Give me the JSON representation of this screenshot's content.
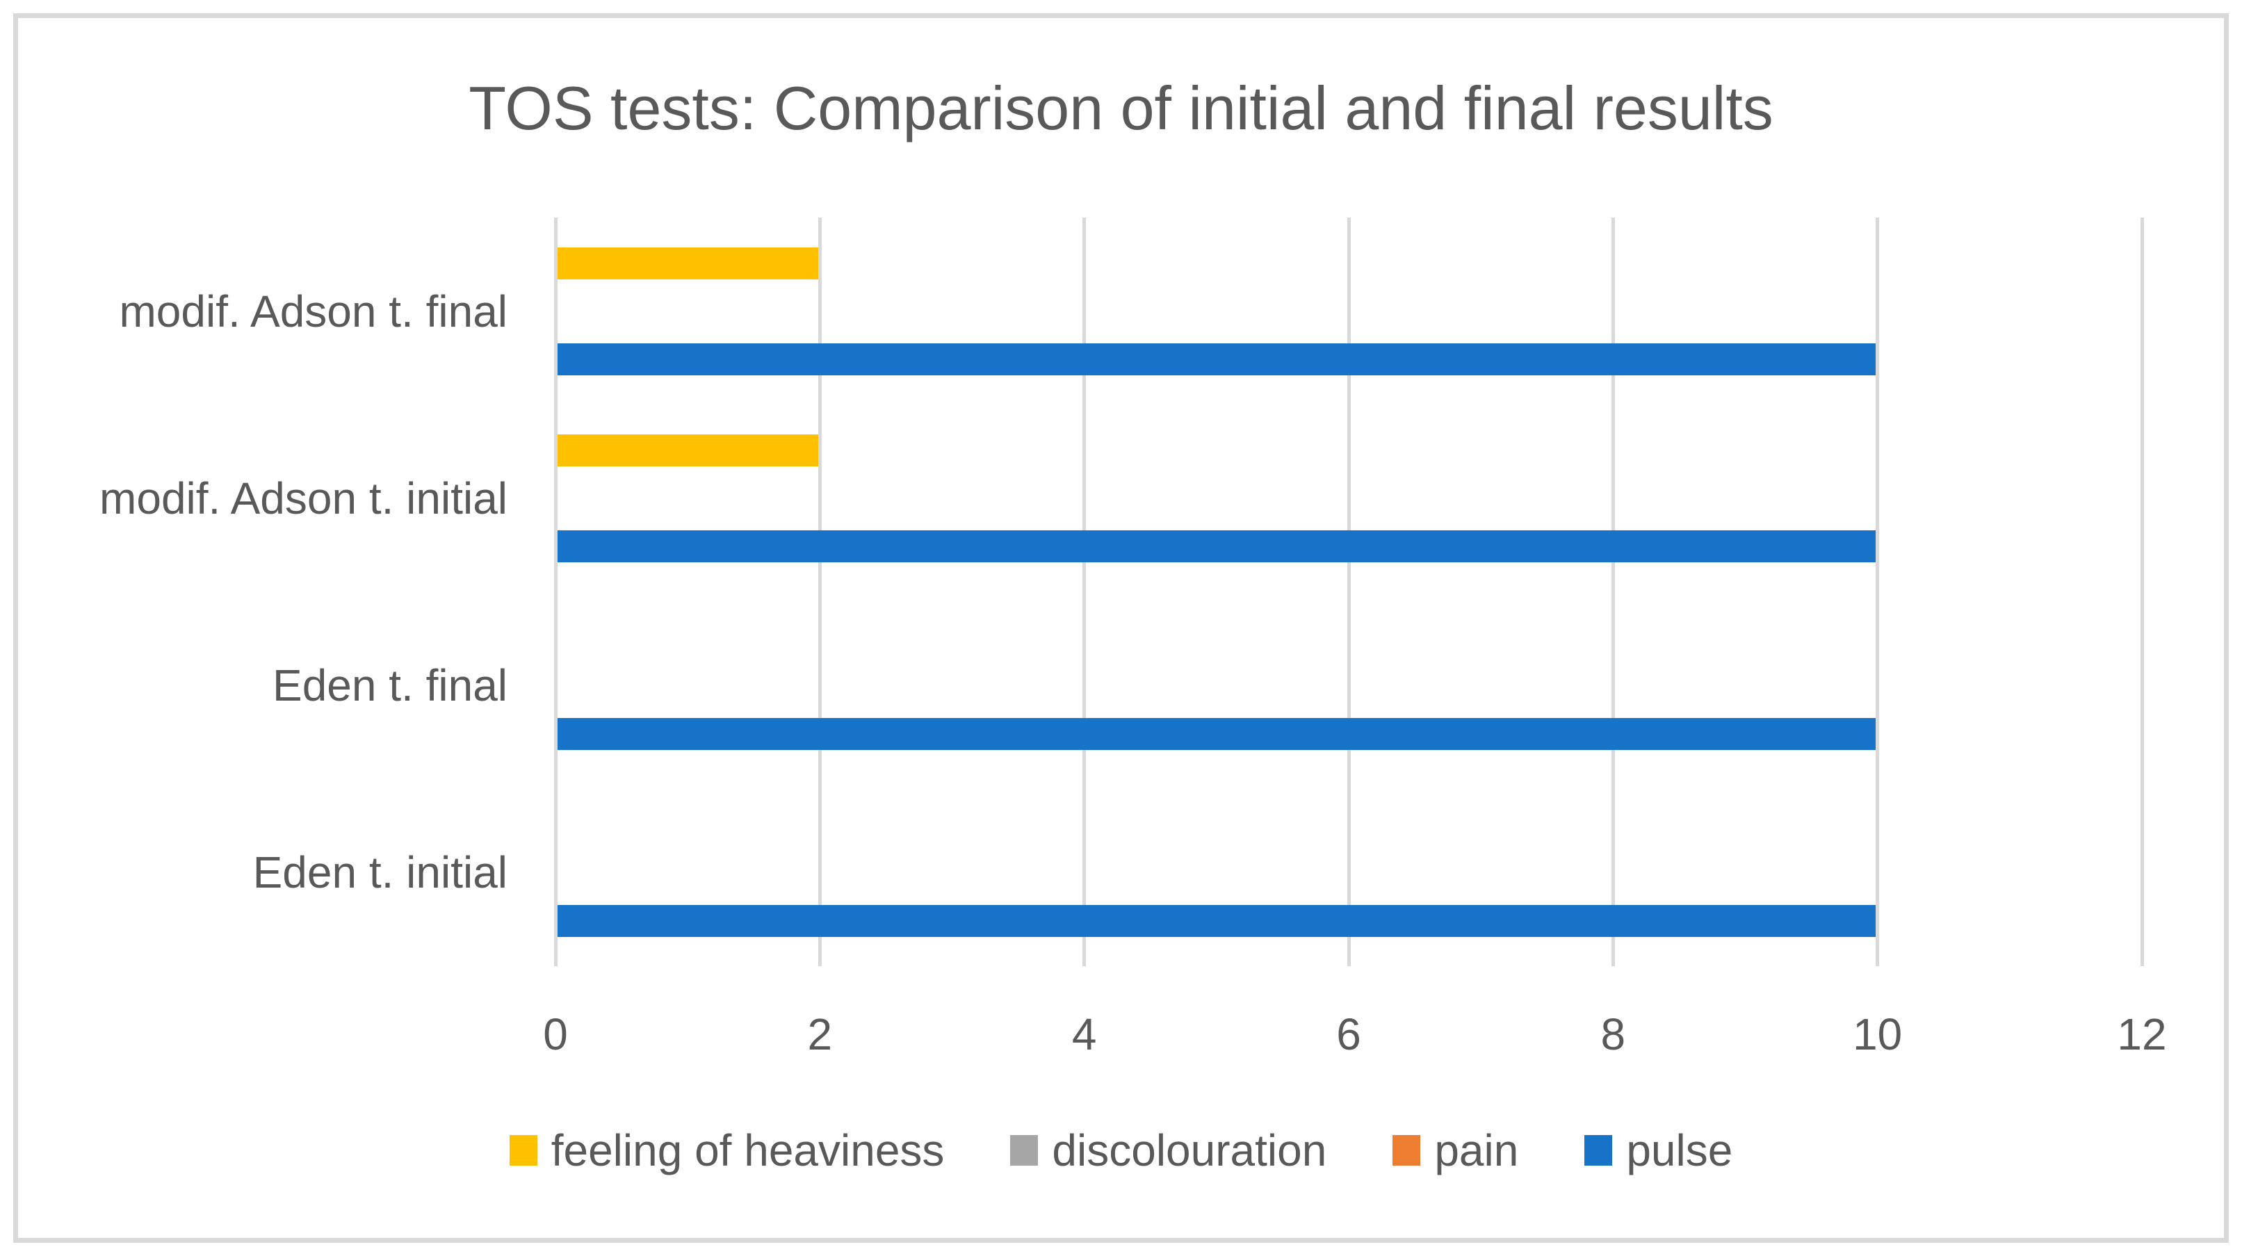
{
  "chart_data": {
    "type": "bar",
    "orientation": "horizontal",
    "title": "TOS tests: Comparison of initial and final results",
    "categories": [
      "modif. Adson t. final",
      "modif. Adson t. initial",
      "Eden t. final",
      "Eden t. initial"
    ],
    "series": [
      {
        "name": "feeling of heaviness",
        "color": "#FFC000",
        "values": [
          2,
          2,
          0,
          0
        ]
      },
      {
        "name": "discolouration",
        "color": "#A6A6A6",
        "values": [
          0,
          0,
          0,
          0
        ]
      },
      {
        "name": "pain",
        "color": "#ED7D31",
        "values": [
          0,
          0,
          0,
          0
        ]
      },
      {
        "name": "pulse",
        "color": "#1773C8",
        "values": [
          10,
          10,
          10,
          10
        ]
      }
    ],
    "x_axis": {
      "min": 0,
      "max": 12,
      "tick_step": 2,
      "ticks": [
        0,
        2,
        4,
        6,
        8,
        10,
        12
      ]
    },
    "grid": "vertical-only",
    "legend_position": "bottom",
    "colors": {
      "text": "#595959",
      "gridline": "#D9D9D9",
      "frame_border": "#D9D9D9",
      "background": "#FFFFFF"
    }
  }
}
